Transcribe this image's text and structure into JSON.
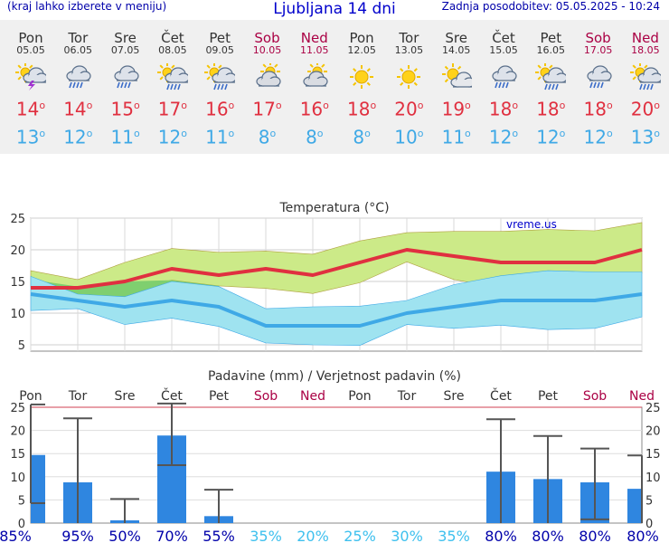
{
  "header": {
    "menu_note": "(kraj lahko izberete v meniju)",
    "title": "Ljubljana 14 dni",
    "updated": "Zadnja posodobitev: 05.05.2025 - 10:24"
  },
  "forecast": [
    {
      "day": "Pon",
      "date": "05.05",
      "weekend": false,
      "icon": "sun-cloud-storm-icon",
      "max": "14",
      "min": "13"
    },
    {
      "day": "Tor",
      "date": "06.05",
      "weekend": false,
      "icon": "cloud-rain-icon",
      "max": "14",
      "min": "12"
    },
    {
      "day": "Sre",
      "date": "07.05",
      "weekend": false,
      "icon": "cloud-rain-icon",
      "max": "15",
      "min": "11"
    },
    {
      "day": "Čet",
      "date": "08.05",
      "weekend": false,
      "icon": "sun-cloud-rain-icon",
      "max": "17",
      "min": "12"
    },
    {
      "day": "Pet",
      "date": "09.05",
      "weekend": false,
      "icon": "sun-cloud-rain-icon",
      "max": "16",
      "min": "11"
    },
    {
      "day": "Sob",
      "date": "10.05",
      "weekend": true,
      "icon": "sun-cloud-icon",
      "max": "17",
      "min": "8"
    },
    {
      "day": "Ned",
      "date": "11.05",
      "weekend": true,
      "icon": "sun-cloud-icon",
      "max": "16",
      "min": "8"
    },
    {
      "day": "Pon",
      "date": "12.05",
      "weekend": false,
      "icon": "sun-icon",
      "max": "18",
      "min": "8"
    },
    {
      "day": "Tor",
      "date": "13.05",
      "weekend": false,
      "icon": "sun-icon",
      "max": "20",
      "min": "10"
    },
    {
      "day": "Sre",
      "date": "14.05",
      "weekend": false,
      "icon": "sun-small-cloud-icon",
      "max": "19",
      "min": "11"
    },
    {
      "day": "Čet",
      "date": "15.05",
      "weekend": false,
      "icon": "cloud-rain-icon",
      "max": "18",
      "min": "12"
    },
    {
      "day": "Pet",
      "date": "16.05",
      "weekend": false,
      "icon": "sun-cloud-rain-icon",
      "max": "18",
      "min": "12"
    },
    {
      "day": "Sob",
      "date": "17.05",
      "weekend": true,
      "icon": "cloud-rain-icon",
      "max": "18",
      "min": "12"
    },
    {
      "day": "Ned",
      "date": "18.05",
      "weekend": true,
      "icon": "sun-cloud-rain-icon",
      "max": "20",
      "min": "13"
    }
  ],
  "colors": {
    "weekday": "#333333",
    "weekend": "#aa0044",
    "max_line": "#e03040",
    "min_line": "#3fa9e6",
    "max_band": "#ccea88",
    "max_band_inner": "#7fcf6f",
    "min_band": "#9fe3f0",
    "bar": "#2f86e0",
    "whisker": "#555555",
    "prob_high": "#0000aa",
    "prob_low": "#3ec0ee"
  },
  "chart_data": [
    {
      "type": "line",
      "title": "Temperatura (°C)",
      "watermark": "vreme.us",
      "categories": [
        "05.05",
        "06.05",
        "07.05",
        "08.05",
        "09.05",
        "10.05",
        "11.05",
        "12.05",
        "13.05",
        "14.05",
        "15.05",
        "16.05",
        "17.05",
        "18.05"
      ],
      "ylim": [
        4,
        25
      ],
      "yticks": [
        5,
        10,
        15,
        20,
        25
      ],
      "grid": true,
      "series": [
        {
          "role": "max",
          "values": [
            14,
            14,
            15,
            17,
            16,
            17,
            16,
            18,
            20,
            19,
            18,
            18,
            18,
            20
          ]
        },
        {
          "role": "max_band_high",
          "values": [
            16.7,
            15.3,
            18,
            20.2,
            19.6,
            19.8,
            19.3,
            21.4,
            22.7,
            22.9,
            22.9,
            23.2,
            23.0,
            24.3
          ]
        },
        {
          "role": "max_band_low",
          "values": [
            14,
            13.6,
            13.5,
            15.2,
            14.3,
            13.9,
            13.1,
            14.8,
            18.1,
            15.3,
            14.0,
            13.6,
            13.6,
            16.3
          ]
        },
        {
          "role": "max_band_inner_high",
          "values": [
            15.3,
            14.2,
            15.0,
            15.2,
            14.3,
            null,
            null,
            null,
            null,
            null,
            15.8,
            16.5,
            16.5,
            16.3
          ]
        },
        {
          "role": "max_band_inner_low",
          "values": [
            13.8,
            13.0,
            12.5,
            14.6,
            13.6,
            null,
            null,
            null,
            null,
            null,
            14.0,
            13.3,
            13.3,
            15.5
          ]
        },
        {
          "role": "min",
          "values": [
            13,
            12,
            11,
            12,
            11,
            8,
            8,
            8,
            10,
            11,
            12,
            12,
            12,
            13
          ]
        },
        {
          "role": "min_band_high",
          "values": [
            15.8,
            13.0,
            12.6,
            15.0,
            14.2,
            10.7,
            11.0,
            11.1,
            12.0,
            14.5,
            15.9,
            16.7,
            16.5,
            16.5
          ]
        },
        {
          "role": "min_band_low",
          "values": [
            10.4,
            10.7,
            8.2,
            9.2,
            7.9,
            5.3,
            5.0,
            4.9,
            8.2,
            7.6,
            8.1,
            7.4,
            7.6,
            9.4
          ]
        }
      ]
    },
    {
      "type": "bar",
      "title": "Padavine (mm) / Verjetnost padavin (%)",
      "categories": [
        "Pon",
        "Tor",
        "Sre",
        "Čet",
        "Pet",
        "Sob",
        "Ned",
        "Pon",
        "Tor",
        "Sre",
        "Čet",
        "Pet",
        "Sob",
        "Ned"
      ],
      "ylim": [
        0,
        25
      ],
      "yticks": [
        0,
        5,
        10,
        15,
        20,
        25
      ],
      "values": [
        14.7,
        8.8,
        0.6,
        18.9,
        1.5,
        0,
        0,
        0,
        0,
        0,
        11.1,
        9.5,
        8.8,
        7.4
      ],
      "range_high": [
        25.6,
        22.6,
        5.2,
        25.8,
        7.2,
        null,
        null,
        null,
        null,
        null,
        22.4,
        18.8,
        16.1,
        14.6
      ],
      "range_low": [
        4.3,
        0,
        0,
        12.5,
        0,
        null,
        null,
        null,
        null,
        null,
        0,
        0,
        0.8,
        0
      ],
      "probability": [
        "85%",
        "95%",
        "50%",
        "70%",
        "55%",
        "35%",
        "20%",
        "25%",
        "30%",
        "35%",
        "80%",
        "80%",
        "80%",
        "80%"
      ]
    }
  ]
}
